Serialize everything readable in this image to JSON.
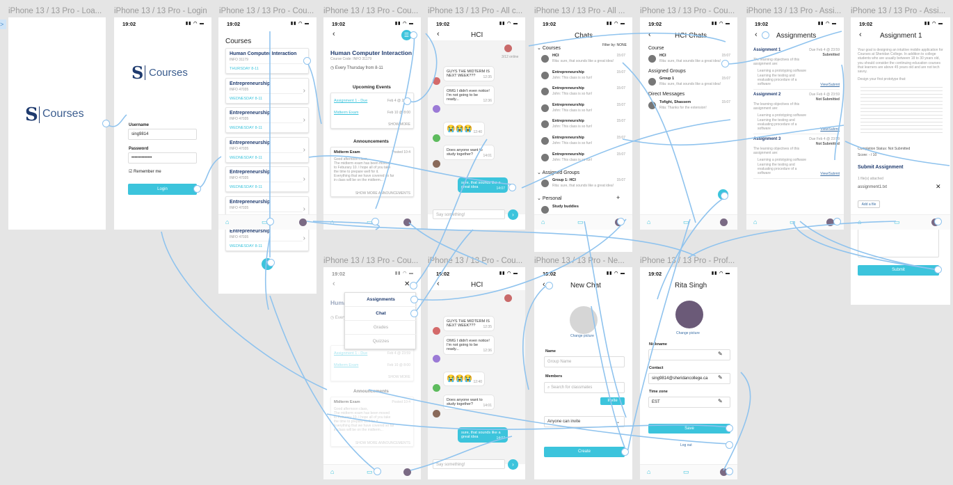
{
  "labels": [
    "iPhone 13 / 13 Pro - Loa...",
    "iPhone 13 / 13 Pro - Login",
    "iPhone 13 / 13 Pro - Cou...",
    "iPhone 13 / 13 Pro - Cou...",
    "iPhone 13 / 13 Pro - All c...",
    "iPhone 13 / 13 Pro - All ...",
    "iPhone 13 / 13 Pro - Cou...",
    "iPhone 13 / 13 Pro - Assi...",
    "iPhone 13 / 13 Pro - Assi...",
    "iPhone 13 / 13 Pro - Cou...",
    "iPhone 13 / 13 Pro - Cou...",
    "iPhone 13 / 13 Pro - Ne...",
    "iPhone 13 / 13 Pro - Prof..."
  ],
  "time": "19:02",
  "status_icons": "▮▮ ◠ ▬",
  "brand": {
    "letter": "S",
    "word": "Courses"
  },
  "login": {
    "username_label": "Username",
    "username_value": "sing9814",
    "password_label": "Password",
    "password_value": "••••••••••••••",
    "remember": "Remember me",
    "login_button": "Login"
  },
  "courses": {
    "title": "Courses",
    "items": [
      {
        "name": "Human Computer Interaction",
        "code": "INFO 31179",
        "time": "THURSDAY 8-11"
      },
      {
        "name": "Entrepreneurship",
        "code": "INFO 47035",
        "time": "WEDNESDAY 8-11"
      },
      {
        "name": "Entrepreneurship",
        "code": "INFO 47035",
        "time": "WEDNESDAY 8-11"
      },
      {
        "name": "Entrepreneurship",
        "code": "INFO 47035",
        "time": "WEDNESDAY 8-11"
      },
      {
        "name": "Entrepreneurship",
        "code": "INFO 47035",
        "time": "WEDNESDAY 8-11"
      },
      {
        "name": "Entrepreneurship",
        "code": "INFO 47035",
        "time": "WEDNESDAY 8-11"
      },
      {
        "name": "Entrepreneurship",
        "code": "INFO 47035",
        "time": "WEDNESDAY 8-11"
      }
    ]
  },
  "course_detail": {
    "title": "Human Computer Interaction",
    "code": "Course Code: INFO 31179",
    "schedule": "Every Thursday from 8-11",
    "upcoming_title": "Upcoming Events",
    "events": [
      {
        "name": "Assignment 1 - Due",
        "date": "Feb 4 @ 23:59"
      },
      {
        "name": "Midterm Exam",
        "date": "Feb 10 @ 8:00"
      }
    ],
    "show_more": "SHOW MORE",
    "announcements_title": "Announcements",
    "ann_title": "Midterm Exam",
    "ann_date": "Posted 10:4",
    "ann_body": "Good afternoon class,\nThe midterm exam has been moved\nto Feburary 10. I hope all of you take\nthe time to prepare well for it.\nEverything that we have covered so far\nin class will be on the midterm...",
    "show_more_ann": "SHOW MORE ANNOUNCEMENTS"
  },
  "menu": {
    "items": [
      "Assignments",
      "Chat",
      "Grades",
      "Quizzes"
    ]
  },
  "hci_chat": {
    "title": "HCI",
    "members_online": "3/12 online",
    "messages": [
      {
        "text": "GUYS THE MIDTERM IS NEXT WEEK???",
        "time": "12:35"
      },
      {
        "text": "OMG I didn't even notice! I'm not going to be ready...",
        "time": "12:36"
      },
      {
        "text": "😭😭😭",
        "time": "12:40"
      },
      {
        "text": "Does anyone want to study together?",
        "time": "14:01"
      },
      {
        "text": "sure, that sounds like a great idea",
        "time": "14:07"
      }
    ],
    "placeholder": "Say something!"
  },
  "all_chats": {
    "title": "Chats",
    "filter": "Filter by: NONE",
    "sec_courses": "Courses",
    "course_chats": [
      {
        "name": "HCI",
        "msg": "Rita: sure, that sounds like a great idea!",
        "time": "15:07"
      },
      {
        "name": "Entrepreneurship",
        "msg": "John: This class is so fun!",
        "time": "15:07"
      },
      {
        "name": "Entrepreneurship",
        "msg": "John: This class is so fun!",
        "time": "15:07"
      },
      {
        "name": "Entrepreneurship",
        "msg": "John: This class is so fun!",
        "time": "15:07"
      },
      {
        "name": "Entrepreneurship",
        "msg": "John: This class is so fun!",
        "time": "15:07"
      },
      {
        "name": "Entrepreneurship",
        "msg": "John: This class is so fun!",
        "time": "15:07"
      },
      {
        "name": "Entrepreneurship",
        "msg": "John: This class is so fun!",
        "time": "15:07"
      }
    ],
    "sec_groups": "Assigned Groups",
    "group_chat": {
      "name": "Group 1: HCI",
      "msg": "Rita: sure, that sounds like a great idea!",
      "time": "15:07"
    },
    "sec_personal": "Personal",
    "personal_chat": {
      "name": "Study buddies"
    }
  },
  "hci_chats": {
    "title": "HCI Chats",
    "sec_course": "Course",
    "course": {
      "name": "HCI",
      "msg": "Rita: sure, that sounds like a great idea!",
      "time": "15:07"
    },
    "sec_groups": "Assigned Groups",
    "group": {
      "name": "Group 1",
      "msg": "Rita: sure, that sounds like a great idea!",
      "time": "15:07"
    },
    "sec_dm": "Direct Messages",
    "dm": {
      "name": "Tofighi, Shassem",
      "msg": "Rita: Thanks for the extension!",
      "time": "15:07"
    }
  },
  "assignments": {
    "title": "Assignments",
    "items": [
      {
        "name": "Assignment 1",
        "due": "Due Feb 4 @ 23:59",
        "status": "Submitted",
        "link": "View/Submit"
      },
      {
        "name": "Assignment 2",
        "due": "Due Feb 4 @ 23:59",
        "status": "Not Submitted",
        "link": "View/Submit"
      },
      {
        "name": "Assignment 3",
        "due": "Due Feb 4 @ 23:59",
        "status": "Not Submitted",
        "link": "View/Submit"
      }
    ],
    "desc": "The learning objectives of this assignment are:",
    "b1": "Learning a prototyping software",
    "b2": "Learning the testing and evaluating procedure of a software"
  },
  "assignment1": {
    "title": "Assignment 1",
    "body": "Your goal is designing an intuitive mobile application for Courses at Sheridan College. In addition to college students who are usually between 18 to 30 years old, you should consider the continuing education courses that learners are above 45 years old and are not tech savvy.",
    "proto": "Design your first prototype that:",
    "completion": "Completion Status: Not Submitted",
    "score": "Score: - / 10",
    "submit_title": "Submit Assignment",
    "files": "1 file(s) attached",
    "filename": "assignment1.txt",
    "add_file": "Add a file",
    "submit": "Submit"
  },
  "new_chat": {
    "title": "New Chat",
    "change_pic": "Change picture",
    "name_label": "Name",
    "name_ph": "Group Name",
    "members_label": "Members",
    "search_ph": "Search for classmates",
    "invite": "Invite",
    "anyone": "Anyone can invite",
    "create": "Create"
  },
  "profile": {
    "name": "Rita Singh",
    "change_pic": "Change picture",
    "nickname_label": "Nickname",
    "nickname_value": "",
    "contact_label": "Contact",
    "contact_value": "sing9814@sheridancollege.ca",
    "tz_label": "Time zone",
    "tz_value": "EST",
    "save": "Save",
    "logout": "Log out"
  },
  "colors": {
    "accent": "#3cc4dc",
    "brand": "#1e3a6e",
    "link_line": "#8fc3ee"
  }
}
